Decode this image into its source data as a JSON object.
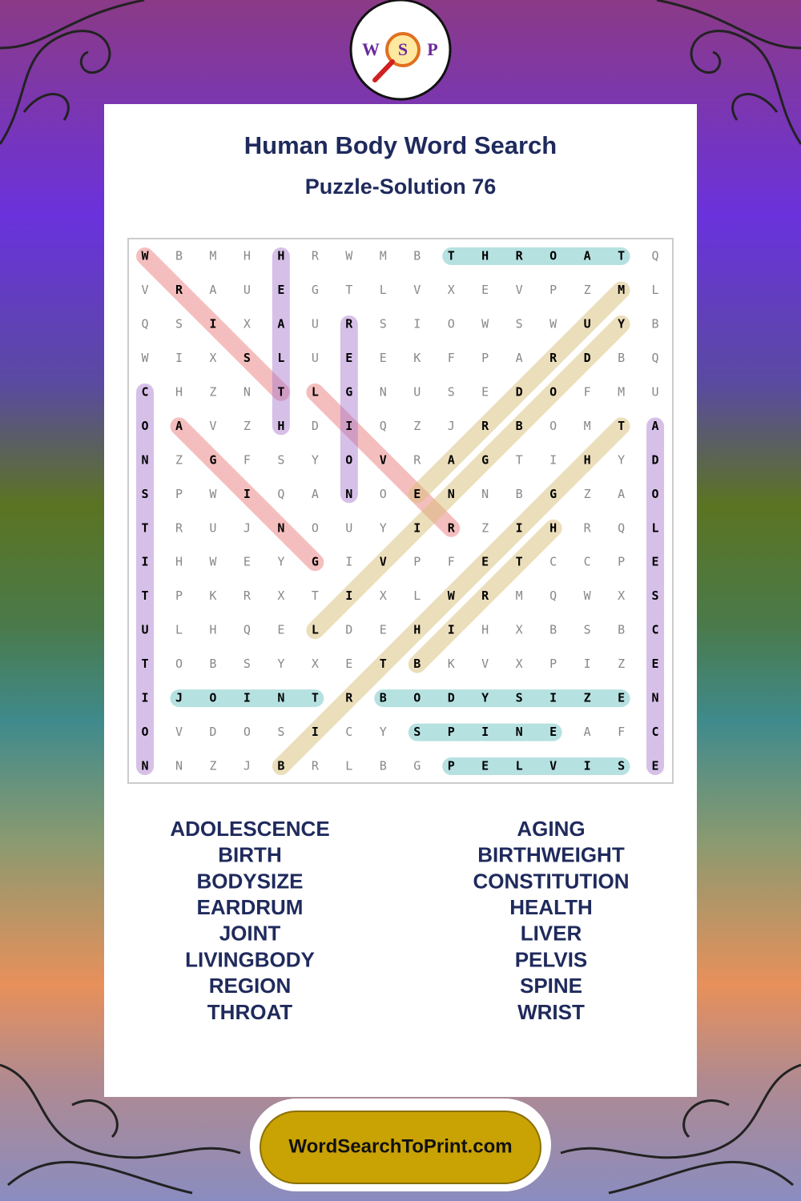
{
  "header": {
    "title": "Human Body Word Search",
    "subtitle": "Puzzle-Solution 76"
  },
  "logo": [
    "W",
    "S",
    "P"
  ],
  "grid": {
    "rows": [
      [
        "W",
        "B",
        "M",
        "H",
        "H",
        "R",
        "W",
        "M",
        "B",
        "T",
        "H",
        "R",
        "O",
        "A",
        "T",
        "Q"
      ],
      [
        "V",
        "R",
        "A",
        "U",
        "E",
        "G",
        "T",
        "L",
        "V",
        "X",
        "E",
        "V",
        "P",
        "Z",
        "M",
        "L"
      ],
      [
        "Q",
        "S",
        "I",
        "X",
        "A",
        "U",
        "R",
        "S",
        "I",
        "O",
        "W",
        "S",
        "W",
        "U",
        "Y",
        "B"
      ],
      [
        "W",
        "I",
        "X",
        "S",
        "L",
        "U",
        "E",
        "E",
        "K",
        "F",
        "P",
        "A",
        "R",
        "D",
        "B",
        "Q"
      ],
      [
        "C",
        "H",
        "Z",
        "N",
        "T",
        "L",
        "G",
        "N",
        "U",
        "S",
        "E",
        "D",
        "O",
        "F",
        "M",
        "U"
      ],
      [
        "O",
        "A",
        "V",
        "Z",
        "H",
        "D",
        "I",
        "Q",
        "Z",
        "J",
        "R",
        "B",
        "O",
        "M",
        "T",
        "A"
      ],
      [
        "N",
        "Z",
        "G",
        "F",
        "S",
        "Y",
        "O",
        "V",
        "R",
        "A",
        "G",
        "T",
        "I",
        "H",
        "Y",
        "D"
      ],
      [
        "S",
        "P",
        "W",
        "I",
        "Q",
        "A",
        "N",
        "O",
        "E",
        "N",
        "N",
        "B",
        "G",
        "Z",
        "A",
        "O"
      ],
      [
        "T",
        "R",
        "U",
        "J",
        "N",
        "O",
        "U",
        "Y",
        "I",
        "R",
        "Z",
        "I",
        "H",
        "R",
        "Q",
        "L"
      ],
      [
        "I",
        "H",
        "W",
        "E",
        "Y",
        "G",
        "I",
        "V",
        "P",
        "F",
        "E",
        "T",
        "C",
        "C",
        "P",
        "E"
      ],
      [
        "T",
        "P",
        "K",
        "R",
        "X",
        "T",
        "I",
        "X",
        "L",
        "W",
        "R",
        "M",
        "Q",
        "W",
        "X",
        "S"
      ],
      [
        "U",
        "L",
        "H",
        "Q",
        "E",
        "L",
        "D",
        "E",
        "H",
        "I",
        "H",
        "X",
        "B",
        "S",
        "B",
        "C"
      ],
      [
        "T",
        "O",
        "B",
        "S",
        "Y",
        "X",
        "E",
        "T",
        "B",
        "K",
        "V",
        "X",
        "P",
        "I",
        "Z",
        "E"
      ],
      [
        "I",
        "J",
        "O",
        "I",
        "N",
        "T",
        "R",
        "B",
        "O",
        "D",
        "Y",
        "S",
        "I",
        "Z",
        "E",
        "N"
      ],
      [
        "O",
        "V",
        "D",
        "O",
        "S",
        "I",
        "C",
        "Y",
        "S",
        "P",
        "I",
        "N",
        "E",
        "A",
        "F",
        "C"
      ],
      [
        "N",
        "N",
        "Z",
        "J",
        "B",
        "R",
        "L",
        "B",
        "G",
        "P",
        "E",
        "L",
        "V",
        "I",
        "S",
        "E"
      ]
    ]
  },
  "words": {
    "left": [
      "ADOLESCENCE",
      "BIRTH",
      "BODYSIZE",
      "EARDRUM",
      "JOINT",
      "LIVINGBODY",
      "REGION",
      "THROAT"
    ],
    "right": [
      "AGING",
      "BIRTHWEIGHT",
      "CONSTITUTION",
      "HEALTH",
      "LIVER",
      "PELVIS",
      "SPINE",
      "WRIST"
    ]
  },
  "footer": {
    "url": "WordSearchToPrint.com"
  }
}
